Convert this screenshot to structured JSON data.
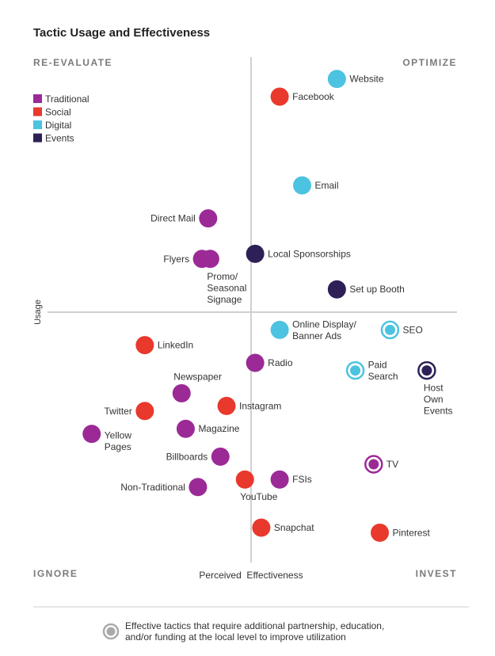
{
  "chart_data": {
    "type": "scatter",
    "title": "Tactic Usage and Effectiveness",
    "xlabel": "Perceived  Effectiveness",
    "ylabel": "Usage",
    "xlim": [
      -10,
      10
    ],
    "ylim": [
      -10,
      10
    ],
    "grid": false,
    "legend_placement": "top-left",
    "quadrants": {
      "top_left": "RE-EVALUATE",
      "top_right": "OPTIMIZE",
      "bottom_left": "IGNORE",
      "bottom_right": "INVEST"
    },
    "categories": [
      {
        "name": "Traditional",
        "color": "#9b2a96"
      },
      {
        "name": "Social",
        "color": "#e8392c"
      },
      {
        "name": "Digital",
        "color": "#4cc3e0"
      },
      {
        "name": "Events",
        "color": "#2e2057"
      }
    ],
    "points": [
      {
        "label": "Website",
        "category": "Digital",
        "x": 4.2,
        "y": 9.2,
        "ring": false,
        "label_side": "right"
      },
      {
        "label": "Facebook",
        "category": "Social",
        "x": 1.4,
        "y": 8.5,
        "ring": false,
        "label_side": "right"
      },
      {
        "label": "Email",
        "category": "Digital",
        "x": 2.5,
        "y": 5.0,
        "ring": false,
        "label_side": "right"
      },
      {
        "label": "Direct Mail",
        "category": "Traditional",
        "x": -2.1,
        "y": 3.7,
        "ring": false,
        "label_side": "left"
      },
      {
        "label": "Local Sponsorships",
        "category": "Events",
        "x": 0.2,
        "y": 2.3,
        "ring": false,
        "label_side": "right"
      },
      {
        "label": "Flyers",
        "category": "Traditional",
        "x": -2.4,
        "y": 2.1,
        "ring": false,
        "label_side": "left"
      },
      {
        "label": "Promo/\nSeasonal\nSignage",
        "category": "Traditional",
        "x": -2.0,
        "y": 2.1,
        "ring": false,
        "label_side": "below"
      },
      {
        "label": "Set up Booth",
        "category": "Events",
        "x": 4.2,
        "y": 0.9,
        "ring": false,
        "label_side": "right"
      },
      {
        "label": "Online Display/\nBanner Ads",
        "category": "Digital",
        "x": 1.4,
        "y": -0.7,
        "ring": false,
        "label_side": "right"
      },
      {
        "label": "SEO",
        "category": "Digital",
        "x": 6.8,
        "y": -0.7,
        "ring": true,
        "label_side": "right"
      },
      {
        "label": "LinkedIn",
        "category": "Social",
        "x": -5.2,
        "y": -1.3,
        "ring": false,
        "label_side": "right"
      },
      {
        "label": "Radio",
        "category": "Traditional",
        "x": 0.2,
        "y": -2.0,
        "ring": false,
        "label_side": "right"
      },
      {
        "label": "Paid\nSearch",
        "category": "Digital",
        "x": 5.1,
        "y": -2.3,
        "ring": true,
        "label_side": "right"
      },
      {
        "label": "Host\nOwn\nEvents",
        "category": "Events",
        "x": 8.6,
        "y": -2.3,
        "ring": true,
        "label_side": "below"
      },
      {
        "label": "Newspaper",
        "category": "Traditional",
        "x": -3.4,
        "y": -3.2,
        "ring": false,
        "label_side": "above"
      },
      {
        "label": "Instagram",
        "category": "Social",
        "x": -1.2,
        "y": -3.7,
        "ring": false,
        "label_side": "right"
      },
      {
        "label": "Twitter",
        "category": "Social",
        "x": -5.2,
        "y": -3.9,
        "ring": false,
        "label_side": "left"
      },
      {
        "label": "Magazine",
        "category": "Traditional",
        "x": -3.2,
        "y": -4.6,
        "ring": false,
        "label_side": "right"
      },
      {
        "label": "Yellow\nPages",
        "category": "Traditional",
        "x": -7.8,
        "y": -4.8,
        "ring": false,
        "label_side": "right-low"
      },
      {
        "label": "Billboards",
        "category": "Traditional",
        "x": -1.5,
        "y": -5.7,
        "ring": false,
        "label_side": "left"
      },
      {
        "label": "TV",
        "category": "Traditional",
        "x": 6.0,
        "y": -6.0,
        "ring": true,
        "label_side": "right"
      },
      {
        "label": "Non-Traditional",
        "category": "Traditional",
        "x": -2.6,
        "y": -6.9,
        "ring": false,
        "label_side": "left"
      },
      {
        "label": "YouTube",
        "category": "Social",
        "x": -0.3,
        "y": -6.6,
        "ring": false,
        "label_side": "below"
      },
      {
        "label": "FSIs",
        "category": "Traditional",
        "x": 1.4,
        "y": -6.6,
        "ring": false,
        "label_side": "right"
      },
      {
        "label": "Snapchat",
        "category": "Social",
        "x": 0.5,
        "y": -8.5,
        "ring": false,
        "label_side": "right"
      },
      {
        "label": "Pinterest",
        "category": "Social",
        "x": 6.3,
        "y": -8.7,
        "ring": false,
        "label_side": "right"
      }
    ],
    "footnote": "Effective tactics that require additional partnership, education,\nand/or funding at the local level to improve utilization"
  }
}
